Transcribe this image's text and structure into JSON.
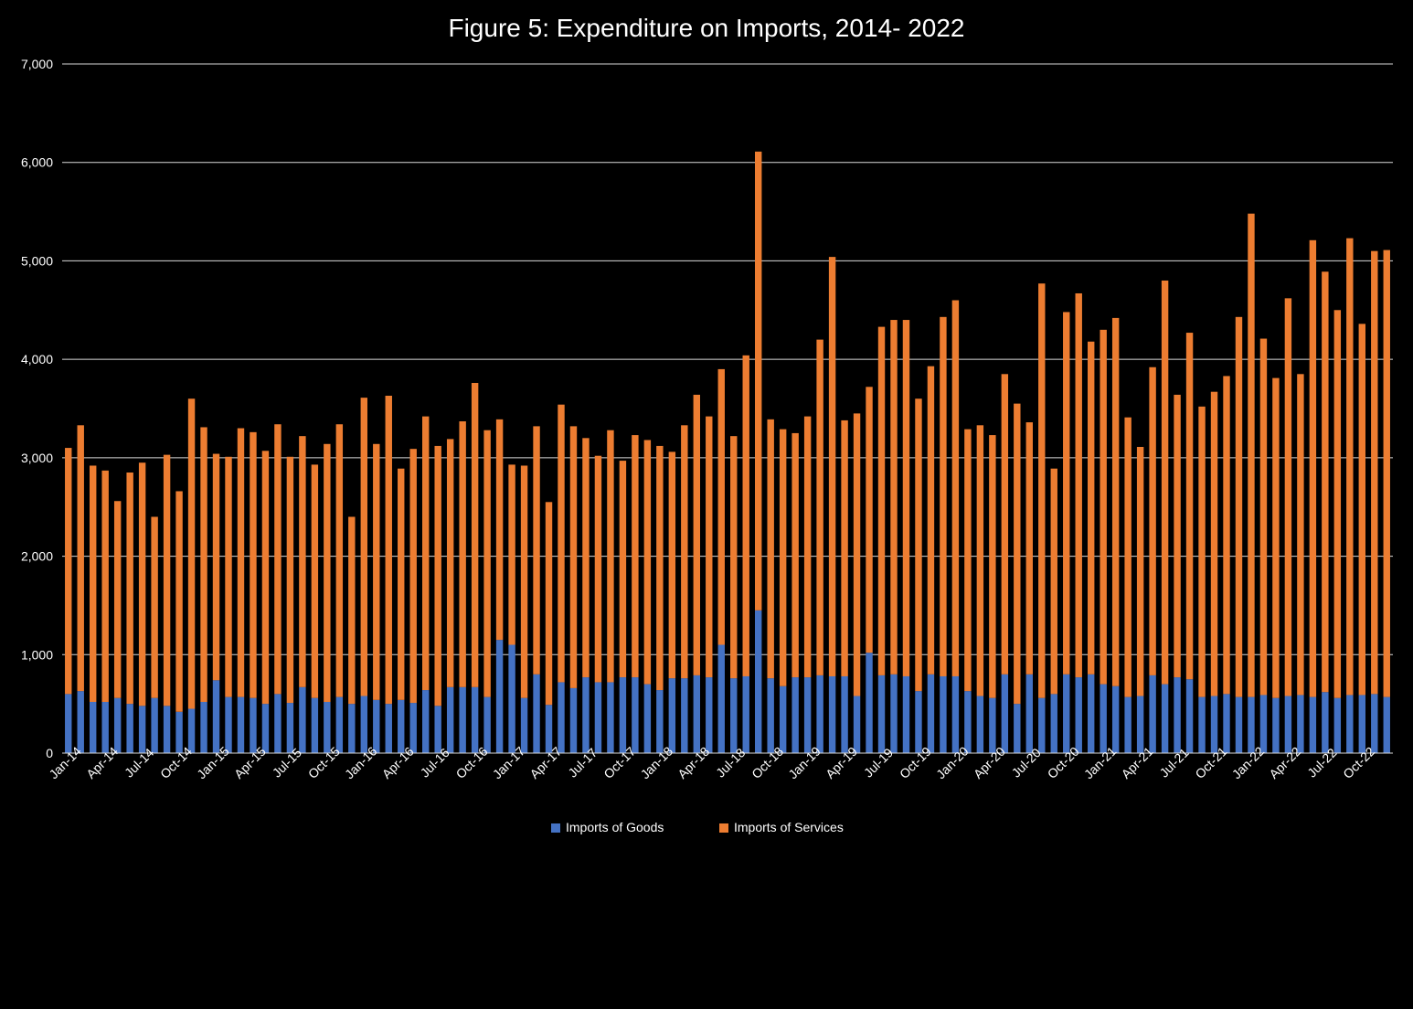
{
  "chart": {
    "type": "stacked-bar",
    "title": "Figure 5: Expenditure on Imports, 2014- 2022",
    "title_fontsize": 28,
    "title_color": "#ffffff",
    "background_color": "#000000",
    "grid_color": "#d9d9d9",
    "label_color": "#ffffff",
    "label_fontsize": 14,
    "legend": {
      "items": [
        {
          "label": "Imports of Goods",
          "color": "#4472c4"
        },
        {
          "label": "Imports of Services",
          "color": "#ed7d31"
        }
      ],
      "y": 880
    },
    "ylim": [
      0,
      7000
    ],
    "ytick_step": 1000,
    "ylabel_format": "plain",
    "bar_width": 0.55,
    "categories": [
      "Jan-14",
      "",
      "",
      "Apr-14",
      "",
      "",
      "Jul-14",
      "",
      "",
      "Oct-14",
      "",
      "",
      "Jan-15",
      "",
      "",
      "Apr-15",
      "",
      "",
      "Jul-15",
      "",
      "",
      "Oct-15",
      "",
      "",
      "Jan-16",
      "",
      "",
      "Apr-16",
      "",
      "",
      "Jul-16",
      "",
      "",
      "Oct-16",
      "",
      "",
      "Jan-17",
      "",
      "",
      "Apr-17",
      "",
      "",
      "Jul-17",
      "",
      "",
      "Oct-17",
      "",
      "",
      "Jan-18",
      "",
      "",
      "Apr-18",
      "",
      "",
      "Jul-18",
      "",
      "",
      "Oct-18",
      "",
      "",
      "Jan-19",
      "",
      "",
      "Apr-19",
      "",
      "",
      "Jul-19",
      "",
      "",
      "Oct-19",
      "",
      "",
      "Jan-20",
      "",
      "",
      "Apr-20",
      "",
      "",
      "Jul-20",
      "",
      "",
      "Oct-20",
      "",
      "",
      "Jan-21",
      "",
      "",
      "Apr-21",
      "",
      "",
      "Jul-21",
      "",
      "",
      "Oct-21",
      "",
      "",
      "Jan-22",
      "",
      "",
      "Apr-22",
      "",
      "",
      "Jul-22",
      "",
      "",
      "Oct-22",
      "",
      ""
    ],
    "tick_every": 3,
    "series": [
      {
        "name": "Imports of Goods",
        "color": "#4472c4",
        "values": [
          600,
          630,
          520,
          520,
          560,
          500,
          480,
          560,
          480,
          420,
          450,
          520,
          740,
          570,
          570,
          560,
          500,
          600,
          510,
          670,
          560,
          520,
          570,
          500,
          580,
          540,
          500,
          540,
          510,
          640,
          480,
          670,
          670,
          670,
          570,
          1150,
          1100,
          560,
          800,
          490,
          720,
          660,
          770,
          720,
          720,
          770,
          770,
          700,
          640,
          760,
          760,
          790,
          770,
          1100,
          760,
          780,
          1450,
          760,
          680,
          770,
          770,
          790,
          780,
          780,
          580,
          1020,
          790,
          800,
          780,
          630,
          800,
          780,
          780,
          630,
          580,
          560,
          800,
          500,
          800,
          560,
          600,
          800,
          770,
          800,
          700,
          680,
          570,
          580,
          790,
          700,
          770,
          750,
          570,
          580,
          600,
          570,
          570,
          590,
          560,
          580,
          590,
          570,
          620,
          560,
          590,
          590,
          600,
          570
        ]
      },
      {
        "name": "Imports of Services",
        "color": "#ed7d31",
        "values": [
          2500,
          2700,
          2400,
          2350,
          2000,
          2350,
          2470,
          1840,
          2550,
          2240,
          3150,
          2790,
          2300,
          2440,
          2730,
          2700,
          2570,
          2740,
          2500,
          2550,
          2370,
          2620,
          2770,
          1900,
          3030,
          2600,
          3130,
          2350,
          2580,
          2780,
          2640,
          2520,
          2700,
          3090,
          2710,
          2240,
          1830,
          2360,
          2520,
          2060,
          2820,
          2660,
          2430,
          2300,
          2560,
          2200,
          2460,
          2480,
          2480,
          2300,
          2570,
          2850,
          2650,
          2800,
          2460,
          3260,
          4660,
          2630,
          2610,
          2480,
          2650,
          3410,
          4260,
          2600,
          2870,
          2700,
          3540,
          3600,
          3620,
          2970,
          3130,
          3650,
          3820,
          2660,
          2750,
          2670,
          3050,
          3050,
          2560,
          4210,
          2290,
          3680,
          3900,
          3380,
          3600,
          3740,
          2840,
          2530,
          3130,
          4100,
          2870,
          3520,
          2950,
          3090,
          3230,
          3860,
          4910,
          3620,
          3250,
          4040,
          3260,
          4640,
          4270,
          3940,
          4640,
          3770,
          4500,
          4540
        ]
      }
    ]
  }
}
